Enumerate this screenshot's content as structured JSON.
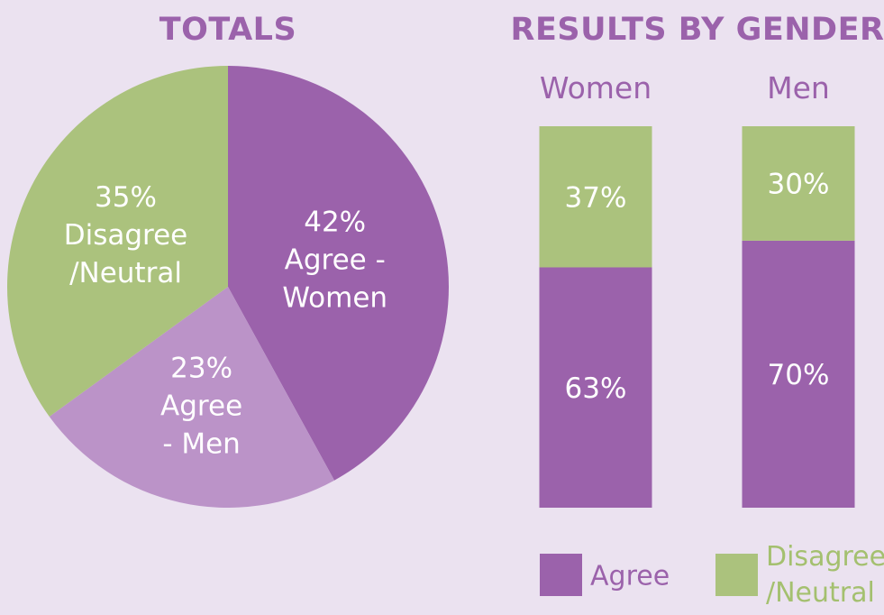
{
  "colors": {
    "background": "#ebe2f0",
    "title": "#9b62ab",
    "agree_women": "#9b62ab",
    "agree_men": "#bb93c8",
    "agree": "#9b62ab",
    "disagree": "#abc27d",
    "legend_disagree_text": "#a4c06f",
    "label_text": "#ffffff"
  },
  "chart_data": [
    {
      "type": "pie",
      "title": "TOTALS",
      "slices": [
        {
          "label": "Agree - Women",
          "value": 42,
          "display": "42%",
          "label_lines": [
            "42%",
            "Agree -",
            "Women"
          ],
          "color": "#9b62ab"
        },
        {
          "label": "Agree - Men",
          "value": 23,
          "display": "23%",
          "label_lines": [
            "23%",
            "Agree",
            "- Men"
          ],
          "color": "#bb93c8"
        },
        {
          "label": "Disagree /Neutral",
          "value": 35,
          "display": "35%",
          "label_lines": [
            "35%",
            "Disagree",
            "/Neutral"
          ],
          "color": "#abc27d"
        }
      ],
      "start_angle_deg": 0,
      "direction": "clockwise"
    },
    {
      "type": "bar",
      "stacked": true,
      "title": "RESULTS BY GENDER",
      "categories": [
        "Women",
        "Men"
      ],
      "series": [
        {
          "name": "Agree",
          "values": [
            63,
            70
          ],
          "display": [
            "63%",
            "70%"
          ],
          "color": "#9b62ab"
        },
        {
          "name": "Disagree /Neutral",
          "values": [
            37,
            30
          ],
          "display": [
            "37%",
            "30%"
          ],
          "color": "#abc27d"
        }
      ],
      "ylim": [
        0,
        100
      ],
      "legend": {
        "position": "bottom",
        "items": [
          {
            "label_lines": [
              "Agree"
            ],
            "color": "#9b62ab"
          },
          {
            "label_lines": [
              "Disagree",
              "/Neutral"
            ],
            "color": "#abc27d"
          }
        ]
      }
    }
  ]
}
